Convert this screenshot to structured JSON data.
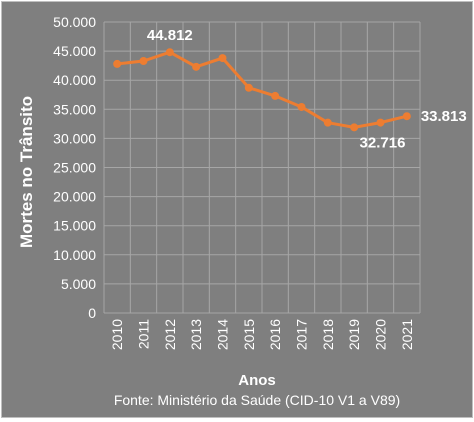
{
  "chart_data": {
    "type": "line",
    "title": "",
    "xlabel": "Anos",
    "ylabel": "Mortes no Trânsito",
    "x": [
      "2010",
      "2011",
      "2012",
      "2013",
      "2014",
      "2015",
      "2016",
      "2017",
      "2018",
      "2019",
      "2020",
      "2021"
    ],
    "series": [
      {
        "values": [
          42800,
          43300,
          44812,
          42300,
          43800,
          38700,
          37300,
          35400,
          32700,
          31900,
          32716,
          33813
        ]
      }
    ],
    "ylim": [
      0,
      50000
    ],
    "y_ticks": [
      "0",
      "5.000",
      "10.000",
      "15.000",
      "20.000",
      "25.000",
      "30.000",
      "35.000",
      "40.000",
      "45.000",
      "50.000"
    ],
    "data_labels": [
      {
        "index": 2,
        "text": "44.812",
        "position": "above"
      },
      {
        "index": 10,
        "text": "32.716",
        "position": "below"
      },
      {
        "index": 11,
        "text": "33.813",
        "position": "right"
      }
    ],
    "grid": true,
    "source_note": "Fonte: Ministério da Saúde (CID-10 V1 a V89)",
    "colors": {
      "background": "#7f7f7f",
      "line": "#ed7d31",
      "grid": "#a6a6a6",
      "text": "#ffffff"
    }
  }
}
